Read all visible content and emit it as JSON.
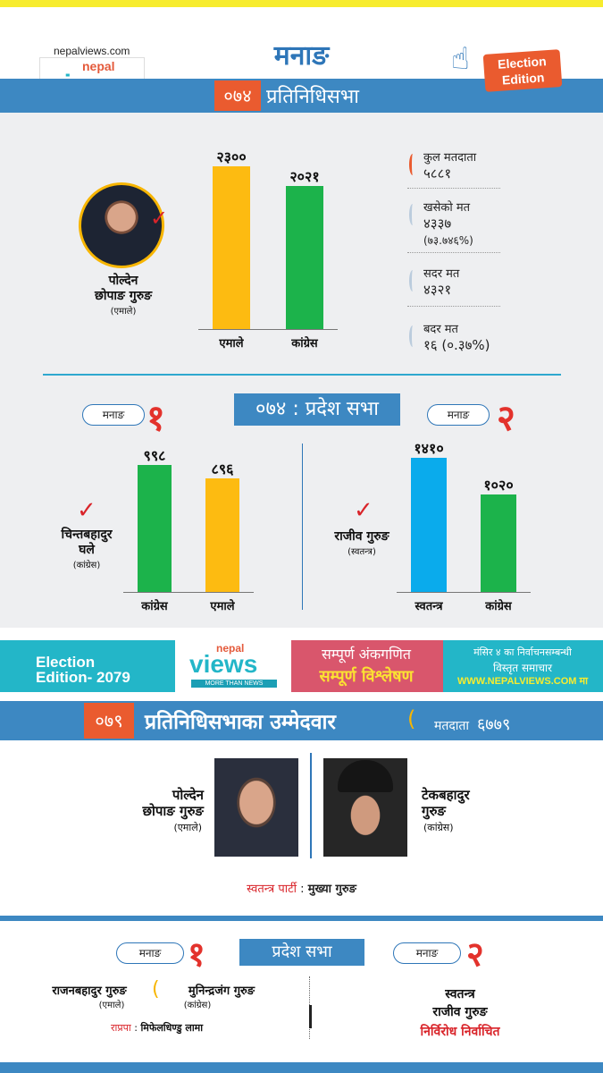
{
  "site": {
    "url": "nepalviews.com",
    "logo_top": "nepal",
    "logo_main": "views",
    "logo_tag": "MORE THAN NEWS"
  },
  "district": "मनाङ",
  "header": {
    "year": "०७४",
    "house": "प्रतिनिधिसभा"
  },
  "edition_badge": {
    "line1": "Election",
    "line2": "Edition"
  },
  "federal_2074": {
    "winner": {
      "name_line1": "पोल्देन",
      "name_line2": "छोपाङ गुरुङ",
      "party": "(एमाले)"
    },
    "chart_data": {
      "type": "bar",
      "categories": [
        "एमाले",
        "कांग्रेस"
      ],
      "values": [
        2300,
        2021
      ],
      "value_labels": [
        "२३००",
        "२०२१"
      ],
      "colors": [
        "#fdbb11",
        "#1cb34b"
      ]
    },
    "stats": [
      {
        "label": "कुल मतदाता",
        "value": "५८८१",
        "sub": ""
      },
      {
        "label": "खसेको मत",
        "value": "४३३७",
        "sub": "(७३.७४६%)"
      },
      {
        "label": "सदर मत",
        "value": "४३२१",
        "sub": ""
      },
      {
        "label": "बदर मत",
        "value": "१६ (०.३७%)",
        "sub": ""
      }
    ]
  },
  "pradesh_2074": {
    "title": "०७४ : प्रदेश सभा",
    "constituencies": [
      {
        "pill": "मनाङ",
        "number": "१",
        "winner": {
          "name_line1": "चिन्तबहादुर",
          "name_line2": "घले",
          "party": "(कांग्रेस)"
        },
        "chart_data": {
          "type": "bar",
          "categories": [
            "कांग्रेस",
            "एमाले"
          ],
          "values": [
            998,
            896
          ],
          "value_labels": [
            "९९८",
            "८९६"
          ],
          "colors": [
            "#1cb34b",
            "#fdbb11"
          ]
        }
      },
      {
        "pill": "मनाङ",
        "number": "२",
        "winner": {
          "name_line1": "राजीव गुरुङ",
          "name_line2": "",
          "party": "(स्वतन्त्र)"
        },
        "chart_data": {
          "type": "bar",
          "categories": [
            "स्वतन्त्र",
            "कांग्रेस"
          ],
          "values": [
            1410,
            1020
          ],
          "value_labels": [
            "१४१०",
            "१०२०"
          ],
          "colors": [
            "#0aabec",
            "#1cb34b"
          ]
        }
      }
    ]
  },
  "banner": {
    "edition_line1": "Election",
    "edition_line2": "Edition- 2079",
    "pink_line1": "सम्पूर्ण अंकगणित",
    "pink_line2": "सम्पूर्ण विश्लेषण",
    "right_line1": "मंसिर ४ का निर्वाचनसम्बन्धी",
    "right_line2": "विस्तृत समाचार",
    "right_line3": "WWW.NEPALVIEWS.COM मा"
  },
  "candidates_2079": {
    "year": "०७९",
    "title": "प्रतिनिधिसभाका उम्मेदवार",
    "voters_label": "मतदाता",
    "voters_value": "६७७९",
    "left": {
      "name_line1": "पोल्देन",
      "name_line2": "छोपाङ गुरुङ",
      "party": "(एमाले)"
    },
    "right": {
      "name_line1": "टेकबहादुर",
      "name_line2": "गुरुङ",
      "party": "(कांग्रेस)"
    },
    "independent_label": "स्वतन्त्र पार्टी",
    "independent_sep": ":",
    "independent_name": "मुख्या गुरुङ"
  },
  "pradesh_2079": {
    "title": "प्रदेश सभा",
    "c1": {
      "pill": "मनाङ",
      "number": "१",
      "cand_a": {
        "name": "राजनबहादुर गुरुङ",
        "party": "(एमाले)"
      },
      "cand_b": {
        "name": "मुनिन्द्रजंग गुरुङ",
        "party": "(कांग्रेस)"
      },
      "rpp_label": "राप्रपा",
      "rpp_sep": ":",
      "rpp_name": "मिफेलधिण्डु लामा"
    },
    "c2": {
      "pill": "मनाङ",
      "number": "२",
      "line1": "स्वतन्त्र",
      "line2": "राजीव गुरुङ",
      "line3": "निर्विरोध निर्वाचित"
    }
  }
}
